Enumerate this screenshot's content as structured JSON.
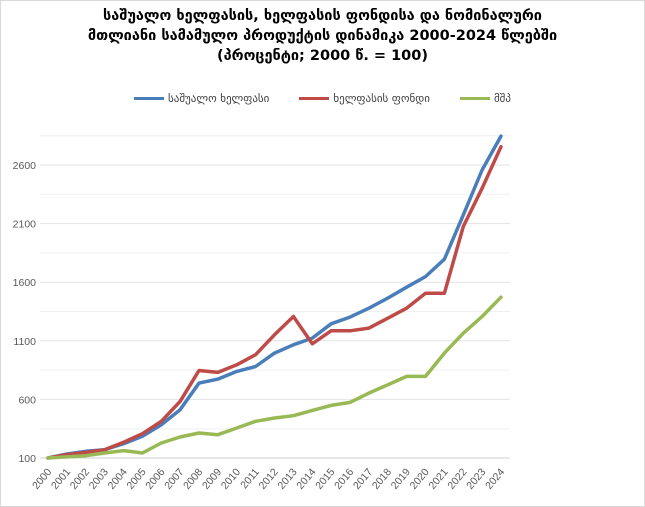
{
  "chart_data": {
    "type": "line",
    "title_lines": [
      "საშუალო ხელფასის, ხელფასის ფონდისა და ნომინალური",
      "მთლიანი სამამულო პროდუქტის დინამიკა 2000-2024 წლებში",
      "(პროცენტი; 2000 წ. = 100)"
    ],
    "xlabel": "",
    "ylabel": "",
    "ylim": [
      100,
      2900
    ],
    "yticks": [
      100,
      600,
      1100,
      1600,
      2100,
      2600
    ],
    "grid": true,
    "legend_position": "top",
    "categories": [
      "2000",
      "2001",
      "2002",
      "2003",
      "2004",
      "2005",
      "2006",
      "2007",
      "2008",
      "2009",
      "2010",
      "2011",
      "2012",
      "2013",
      "2014",
      "2015",
      "2016",
      "2017",
      "2018",
      "2019",
      "2020",
      "2021",
      "2022",
      "2023",
      "2024"
    ],
    "series": [
      {
        "name": "საშუალო ხელფასი",
        "color": "#4a7ebb",
        "values": [
          100,
          134,
          157,
          171,
          222,
          285,
          384,
          512,
          739,
          773,
          839,
          881,
          995,
          1066,
          1123,
          1245,
          1302,
          1378,
          1464,
          1557,
          1648,
          1796,
          2174,
          2557,
          2847
        ]
      },
      {
        "name": "ხელფასის ფონდი",
        "color": "#be4b48",
        "values": [
          100,
          128,
          148,
          171,
          234,
          307,
          413,
          583,
          847,
          830,
          895,
          981,
          1151,
          1307,
          1074,
          1185,
          1185,
          1208,
          1293,
          1378,
          1506,
          1506,
          2075,
          2401,
          2756
        ]
      },
      {
        "name": "მშპ",
        "color": "#98b954",
        "values": [
          100,
          109,
          120,
          143,
          163,
          143,
          228,
          279,
          313,
          299,
          356,
          413,
          441,
          461,
          506,
          549,
          574,
          654,
          725,
          796,
          796,
          995,
          1165,
          1307,
          1472
        ]
      }
    ]
  }
}
